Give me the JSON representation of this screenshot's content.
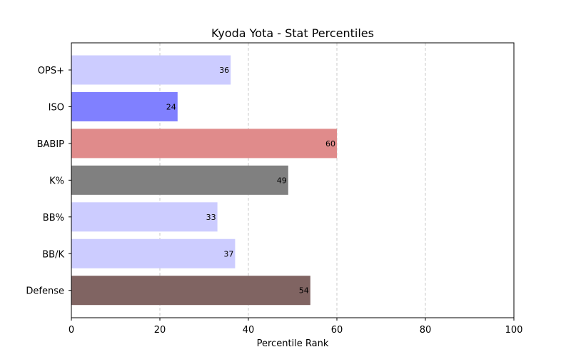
{
  "chart_data": {
    "type": "bar",
    "orientation": "horizontal",
    "title": "Kyoda Yota - Stat Percentiles",
    "xlabel": "Percentile Rank",
    "ylabel": "",
    "xlim": [
      0,
      100
    ],
    "xticks": [
      "0",
      "20",
      "40",
      "60",
      "80",
      "100"
    ],
    "grid": "vertical dashed",
    "legend": "none",
    "categories": [
      "OPS+",
      "ISO",
      "BABIP",
      "K%",
      "BB%",
      "BB/K",
      "Defense"
    ],
    "values": [
      36,
      24,
      60,
      49,
      33,
      37,
      54
    ],
    "data_labels": [
      "36",
      "24",
      "60",
      "49",
      "33",
      "37",
      "54"
    ],
    "bar_colors": [
      "#ccccff",
      "#8080ff",
      "#e08b8b",
      "#808080",
      "#ccccff",
      "#ccccff",
      "#806462"
    ],
    "grid_color": "#c8c8c8"
  }
}
